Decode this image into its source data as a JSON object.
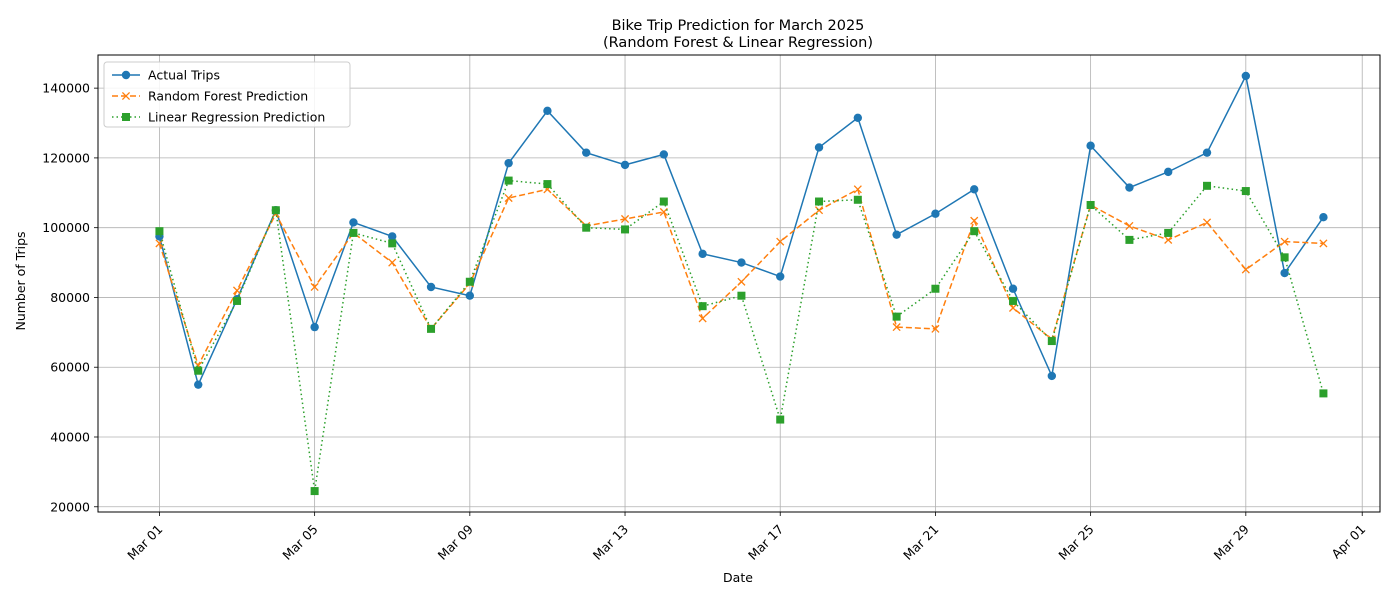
{
  "chart_data": {
    "type": "line",
    "title": "Bike Trip Prediction for March 2025",
    "subtitle": "(Random Forest & Linear Regression)",
    "xlabel": "Date",
    "ylabel": "Number of Trips",
    "x": [
      "2025-03-01",
      "2025-03-02",
      "2025-03-03",
      "2025-03-04",
      "2025-03-05",
      "2025-03-06",
      "2025-03-07",
      "2025-03-08",
      "2025-03-09",
      "2025-03-10",
      "2025-03-11",
      "2025-03-12",
      "2025-03-13",
      "2025-03-14",
      "2025-03-15",
      "2025-03-16",
      "2025-03-17",
      "2025-03-18",
      "2025-03-19",
      "2025-03-20",
      "2025-03-21",
      "2025-03-22",
      "2025-03-23",
      "2025-03-24",
      "2025-03-25",
      "2025-03-26",
      "2025-03-27",
      "2025-03-28",
      "2025-03-29",
      "2025-03-30",
      "2025-03-31"
    ],
    "x_ticks": [
      {
        "date": "2025-03-01",
        "label": "Mar 01"
      },
      {
        "date": "2025-03-05",
        "label": "Mar 05"
      },
      {
        "date": "2025-03-09",
        "label": "Mar 09"
      },
      {
        "date": "2025-03-13",
        "label": "Mar 13"
      },
      {
        "date": "2025-03-17",
        "label": "Mar 17"
      },
      {
        "date": "2025-03-21",
        "label": "Mar 21"
      },
      {
        "date": "2025-03-25",
        "label": "Mar 25"
      },
      {
        "date": "2025-03-29",
        "label": "Mar 29"
      },
      {
        "date": "2025-04-01",
        "label": "Apr 01"
      }
    ],
    "xlim": [
      "2025-02-27T10:00",
      "2025-04-01T11:00"
    ],
    "ylim": [
      18500,
      149500
    ],
    "y_ticks": [
      20000,
      40000,
      60000,
      80000,
      100000,
      120000,
      140000
    ],
    "grid": true,
    "legend_position": "top-left",
    "series": [
      {
        "name": "Actual Trips",
        "color": "#1f77b4",
        "marker": "circle",
        "line_style": "solid",
        "values": [
          97500,
          55000,
          79500,
          105000,
          71500,
          101500,
          97500,
          83000,
          80500,
          118500,
          133500,
          121500,
          118000,
          121000,
          92500,
          90000,
          86000,
          123000,
          131500,
          98000,
          104000,
          111000,
          82500,
          57500,
          123500,
          111500,
          116000,
          121500,
          143500,
          87000,
          103000
        ]
      },
      {
        "name": "Random Forest Prediction",
        "color": "#ff7f0e",
        "marker": "x",
        "line_style": "dashed",
        "values": [
          95500,
          60500,
          82000,
          104000,
          83000,
          98500,
          90000,
          71000,
          84000,
          108500,
          111000,
          100500,
          102500,
          104500,
          74000,
          84500,
          96000,
          105000,
          111000,
          71500,
          71000,
          102000,
          77000,
          68000,
          106500,
          100500,
          96500,
          101500,
          88000,
          96000,
          95500
        ]
      },
      {
        "name": "Linear Regression Prediction",
        "color": "#2ca02c",
        "marker": "square",
        "line_style": "dotted",
        "values": [
          99000,
          59000,
          79000,
          105000,
          24500,
          98500,
          95500,
          71000,
          84500,
          113500,
          112500,
          100000,
          99500,
          107500,
          77500,
          80500,
          45000,
          107500,
          108000,
          74500,
          82500,
          99000,
          79000,
          67500,
          106500,
          96500,
          98500,
          112000,
          110500,
          91500,
          52500
        ]
      }
    ]
  }
}
